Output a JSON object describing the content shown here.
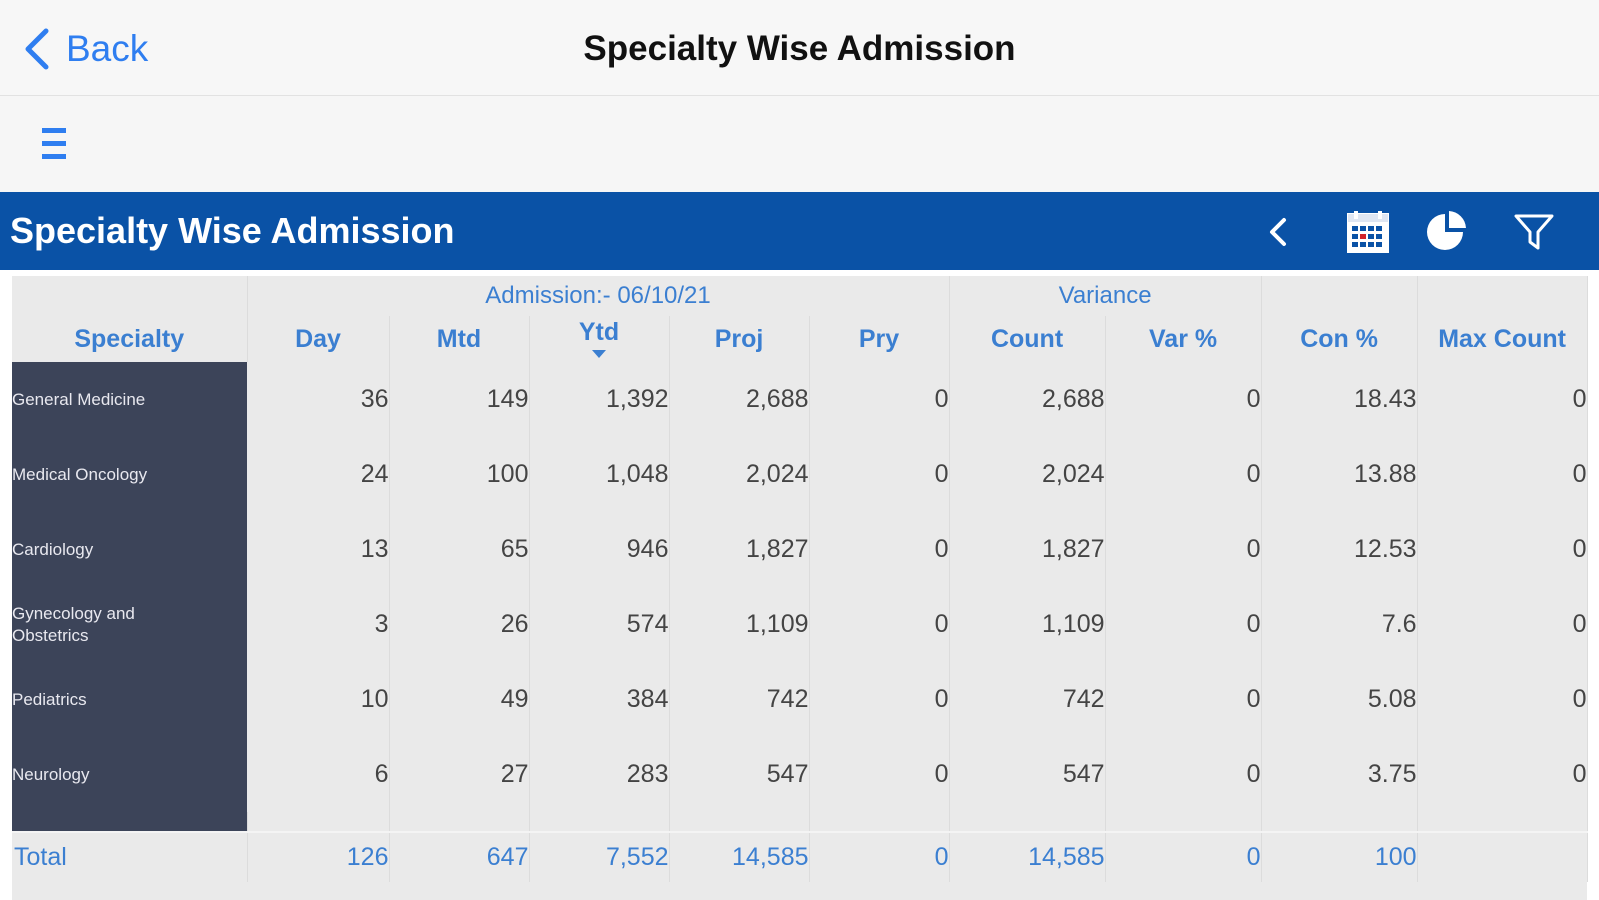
{
  "nav": {
    "back_label": "Back",
    "title": "Specialty Wise Admission"
  },
  "report": {
    "title": "Specialty Wise Admission"
  },
  "colors": {
    "accent": "#2f7ef0",
    "header_band": "#0a52a6",
    "specialty_cell": "#3c4459",
    "header_text": "#3b7fd1"
  },
  "table": {
    "groups": {
      "admission": "Admission:- 06/10/21",
      "variance": "Variance"
    },
    "columns": [
      "Specialty",
      "Day",
      "Mtd",
      "Ytd",
      "Proj",
      "Pry",
      "Count",
      "Var %",
      "Con %",
      "Max Count"
    ],
    "rows": [
      {
        "specialty": "General Medicine",
        "day": "36",
        "mtd": "149",
        "ytd": "1,392",
        "proj": "2,688",
        "pry": "0",
        "count": "2,688",
        "var": "0",
        "con": "18.43",
        "max": "0"
      },
      {
        "specialty": "Medical Oncology",
        "day": "24",
        "mtd": "100",
        "ytd": "1,048",
        "proj": "2,024",
        "pry": "0",
        "count": "2,024",
        "var": "0",
        "con": "13.88",
        "max": "0"
      },
      {
        "specialty": "Cardiology",
        "day": "13",
        "mtd": "65",
        "ytd": "946",
        "proj": "1,827",
        "pry": "0",
        "count": "1,827",
        "var": "0",
        "con": "12.53",
        "max": "0"
      },
      {
        "specialty": "Gynecology and Obstetrics",
        "day": "3",
        "mtd": "26",
        "ytd": "574",
        "proj": "1,109",
        "pry": "0",
        "count": "1,109",
        "var": "0",
        "con": "7.6",
        "max": "0"
      },
      {
        "specialty": "Pediatrics",
        "day": "10",
        "mtd": "49",
        "ytd": "384",
        "proj": "742",
        "pry": "0",
        "count": "742",
        "var": "0",
        "con": "5.08",
        "max": "0"
      },
      {
        "specialty": "Neurology",
        "day": "6",
        "mtd": "27",
        "ytd": "283",
        "proj": "547",
        "pry": "0",
        "count": "547",
        "var": "0",
        "con": "3.75",
        "max": "0"
      }
    ],
    "total": {
      "label": "Total",
      "day": "126",
      "mtd": "647",
      "ytd": "7,552",
      "proj": "14,585",
      "pry": "0",
      "count": "14,585",
      "var": "0",
      "con": "100",
      "max": ""
    }
  },
  "icons": {
    "back": "chevron-left-icon",
    "menu": "hamburger-menu-icon",
    "collapse": "chevron-left-icon",
    "calendar": "calendar-icon",
    "chart": "pie-chart-icon",
    "filter": "filter-icon"
  }
}
